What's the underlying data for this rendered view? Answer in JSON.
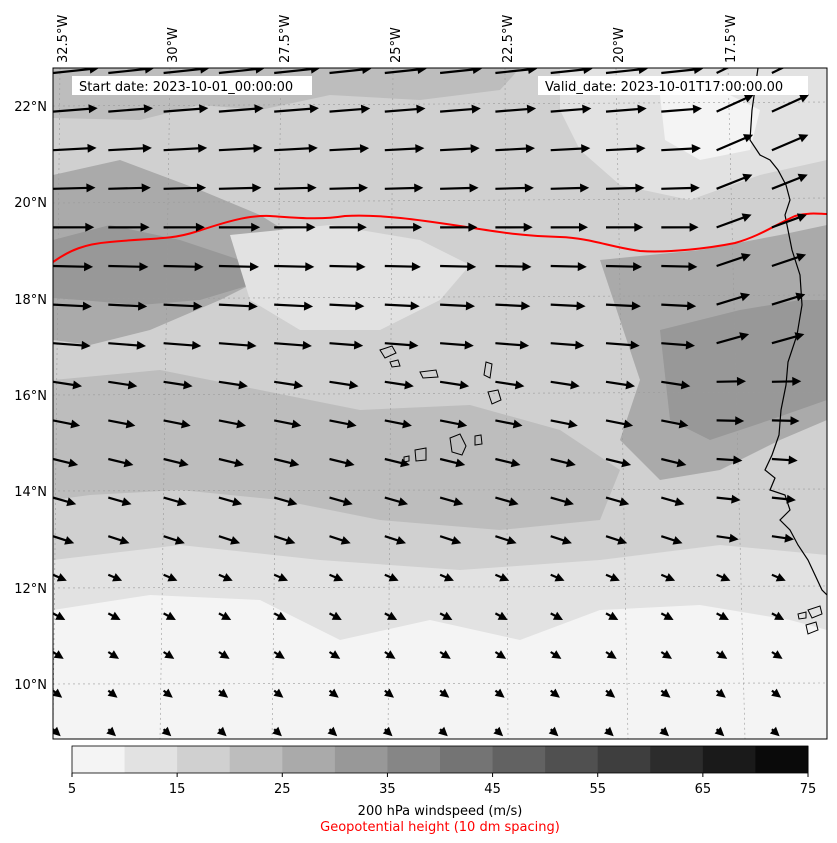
{
  "info": {
    "start_date": "Start date: 2023-10-01_00:00:00",
    "valid_date": "Valid_date: 2023-10-01T17:00:00.00"
  },
  "lon_labels": [
    "32.5°W",
    "30°W",
    "27.5°W",
    "25°W",
    "22.5°W",
    "20°W",
    "17.5°W"
  ],
  "lat_labels": [
    "22°N",
    "20°N",
    "18°N",
    "16°N",
    "14°N",
    "12°N",
    "10°N"
  ],
  "colorbar": {
    "title": "200 hPa windspeed (m/s)",
    "subtitle": "Geopotential height (10 dm spacing)",
    "subtitle_color": "#ff0000",
    "tick_labels": [
      "5",
      "15",
      "25",
      "35",
      "45",
      "55",
      "65",
      "75"
    ],
    "levels": [
      5,
      10,
      15,
      20,
      25,
      30,
      35,
      40,
      45,
      50,
      55,
      60,
      65,
      70,
      75
    ],
    "colors": [
      "#f4f4f4",
      "#e2e2e2",
      "#d0d0d0",
      "#bdbdbd",
      "#aaaaaa",
      "#989898",
      "#868686",
      "#747474",
      "#626262",
      "#505050",
      "#3e3e3e",
      "#2c2c2c",
      "#1a1a1a",
      "#0a0a0a"
    ]
  },
  "contour_color": "#ff0000",
  "coast_color": "#000000",
  "arrow_color": "#000000"
}
